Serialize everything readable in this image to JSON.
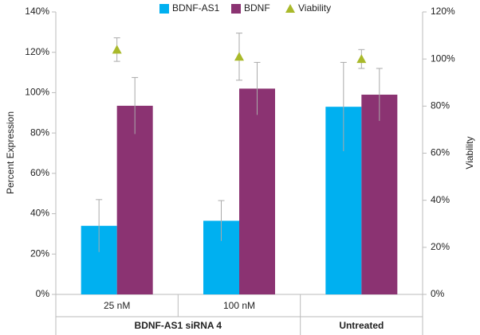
{
  "chart_data": {
    "type": "bar",
    "y_label": "Percent Expression",
    "y2_label": "Viability",
    "categories": [
      "25 nM",
      "100 nM",
      null
    ],
    "groups": [
      {
        "label": "BDNF-AS1 siRNA 4"
      },
      {
        "label": "Untreated"
      }
    ],
    "series": [
      {
        "name": "BDNF-AS1",
        "color": "#00b0f0",
        "values": [
          34,
          36.5,
          93
        ],
        "errors": [
          13,
          10,
          22
        ]
      },
      {
        "name": "BDNF",
        "color": "#8b3372",
        "values": [
          93.5,
          102,
          99
        ],
        "errors": [
          14,
          13,
          13
        ]
      },
      {
        "name": "Viability",
        "color": "#a9b92a",
        "axis": "y2",
        "type": "scatter",
        "values": [
          104,
          101,
          100
        ],
        "errors": [
          5,
          10,
          4
        ]
      }
    ],
    "ylim": [
      0,
      140
    ],
    "yticks": [
      {
        "value": 0,
        "label": "0%"
      },
      {
        "value": 20,
        "label": "20%"
      },
      {
        "value": 40,
        "label": "40%"
      },
      {
        "value": 60,
        "label": "60%"
      },
      {
        "value": 80,
        "label": "80%"
      },
      {
        "value": 100,
        "label": "100%"
      },
      {
        "value": 120,
        "label": "120%"
      },
      {
        "value": 140,
        "label": "140%"
      }
    ],
    "y2lim": [
      0,
      120
    ],
    "y2ticks": [
      {
        "value": 0,
        "label": "0%"
      },
      {
        "value": 20,
        "label": "20%"
      },
      {
        "value": 40,
        "label": "40%"
      },
      {
        "value": 60,
        "label": "60%"
      },
      {
        "value": 80,
        "label": "80%"
      },
      {
        "value": 100,
        "label": "100%"
      },
      {
        "value": 120,
        "label": "120%"
      }
    ],
    "grid": false,
    "legend": "top"
  }
}
